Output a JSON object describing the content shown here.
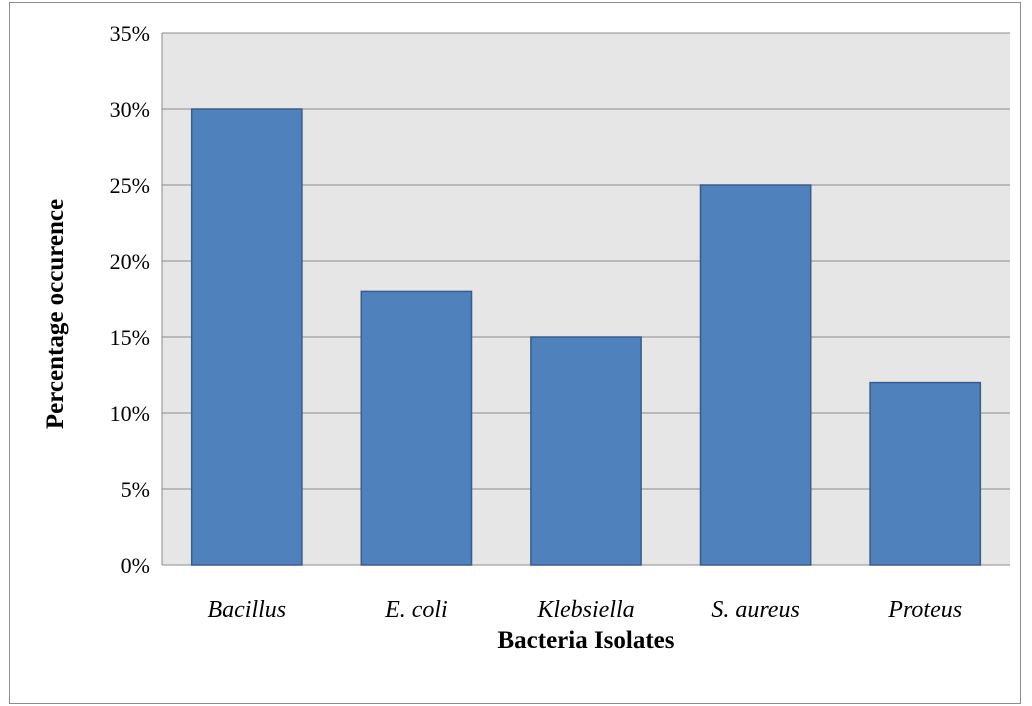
{
  "chart_data": {
    "type": "bar",
    "categories": [
      "Bacillus",
      "E. coli",
      "Klebsiella",
      "S. aureus",
      "Proteus"
    ],
    "values": [
      30,
      18,
      15,
      25,
      12
    ],
    "value_unit": "%",
    "title": "",
    "xlabel": "Bacteria Isolates",
    "ylabel": "Percentage occurence",
    "ylim": [
      0,
      35
    ],
    "yticks": [
      0,
      5,
      10,
      15,
      20,
      25,
      30,
      35
    ],
    "ytick_labels": [
      "0%",
      "5%",
      "10%",
      "15%",
      "20%",
      "25%",
      "30%",
      "35%"
    ],
    "grid": "horizontal",
    "legend": "none",
    "colors": {
      "bar_fill": "#4f81bd",
      "bar_stroke": "#385d8a",
      "plot_background": "#e6e6e6",
      "gridline": "#8c8c8c"
    }
  }
}
